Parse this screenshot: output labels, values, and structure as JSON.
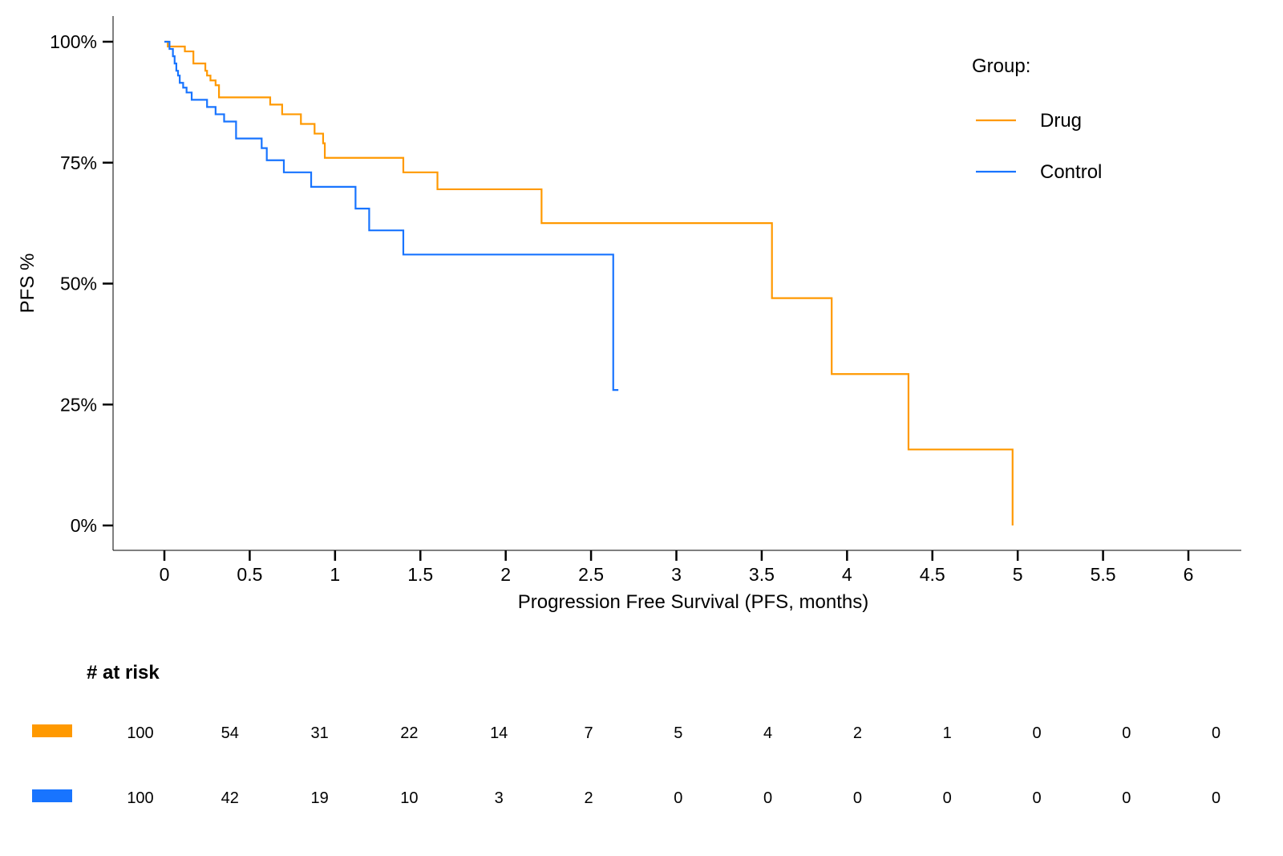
{
  "chart_data": {
    "type": "line",
    "subtype": "kaplan-meier step",
    "xlabel": "Progression Free Survival (PFS, months)",
    "ylabel": "PFS %",
    "xlim": [
      0,
      6
    ],
    "ylim": [
      0,
      1
    ],
    "xticks": [
      0,
      0.5,
      1,
      1.5,
      2,
      2.5,
      3,
      3.5,
      4,
      4.5,
      5,
      5.5,
      6
    ],
    "xtick_labels": [
      "0",
      "0.5",
      "1",
      "1.5",
      "2",
      "2.5",
      "3",
      "3.5",
      "4",
      "4.5",
      "5",
      "5.5",
      "6"
    ],
    "yticks": [
      0,
      0.25,
      0.5,
      0.75,
      1
    ],
    "ytick_labels": [
      "0%",
      "25%",
      "50%",
      "75%",
      "100%"
    ],
    "grid": false,
    "legend": {
      "title": "Group:",
      "position": "top-right"
    },
    "series": [
      {
        "name": "Drug",
        "color": "#FF9900",
        "x": [
          0,
          0.02,
          0.06,
          0.12,
          0.17,
          0.24,
          0.25,
          0.27,
          0.3,
          0.32,
          0.62,
          0.69,
          0.8,
          0.88,
          0.93,
          0.94,
          1.4,
          1.6,
          2.21,
          3.56,
          3.91,
          4.36,
          4.97
        ],
        "y": [
          1.0,
          0.99,
          0.99,
          0.98,
          0.955,
          0.94,
          0.93,
          0.92,
          0.91,
          0.885,
          0.87,
          0.85,
          0.83,
          0.81,
          0.79,
          0.76,
          0.73,
          0.695,
          0.625,
          0.47,
          0.313,
          0.157,
          0.0
        ]
      },
      {
        "name": "Control",
        "color": "#1874FF",
        "x": [
          0,
          0.03,
          0.05,
          0.06,
          0.07,
          0.08,
          0.09,
          0.11,
          0.13,
          0.16,
          0.25,
          0.3,
          0.35,
          0.42,
          0.57,
          0.6,
          0.7,
          0.86,
          1.12,
          1.2,
          1.4,
          2.63,
          2.66
        ],
        "y": [
          1.0,
          0.985,
          0.97,
          0.955,
          0.94,
          0.93,
          0.915,
          0.905,
          0.895,
          0.88,
          0.865,
          0.85,
          0.835,
          0.8,
          0.78,
          0.755,
          0.73,
          0.7,
          0.655,
          0.61,
          0.56,
          0.28,
          0.28
        ]
      }
    ],
    "risk_table": {
      "title": "# at risk",
      "rows": [
        {
          "group": "Drug",
          "color": "#FF9900",
          "counts": [
            "100",
            "54",
            "31",
            "22",
            "14",
            "7",
            "5",
            "4",
            "2",
            "1",
            "0",
            "0",
            "0"
          ]
        },
        {
          "group": "Control",
          "color": "#1874FF",
          "counts": [
            "100",
            "42",
            "19",
            "10",
            "3",
            "2",
            "0",
            "0",
            "0",
            "0",
            "0",
            "0",
            "0"
          ]
        }
      ]
    }
  }
}
